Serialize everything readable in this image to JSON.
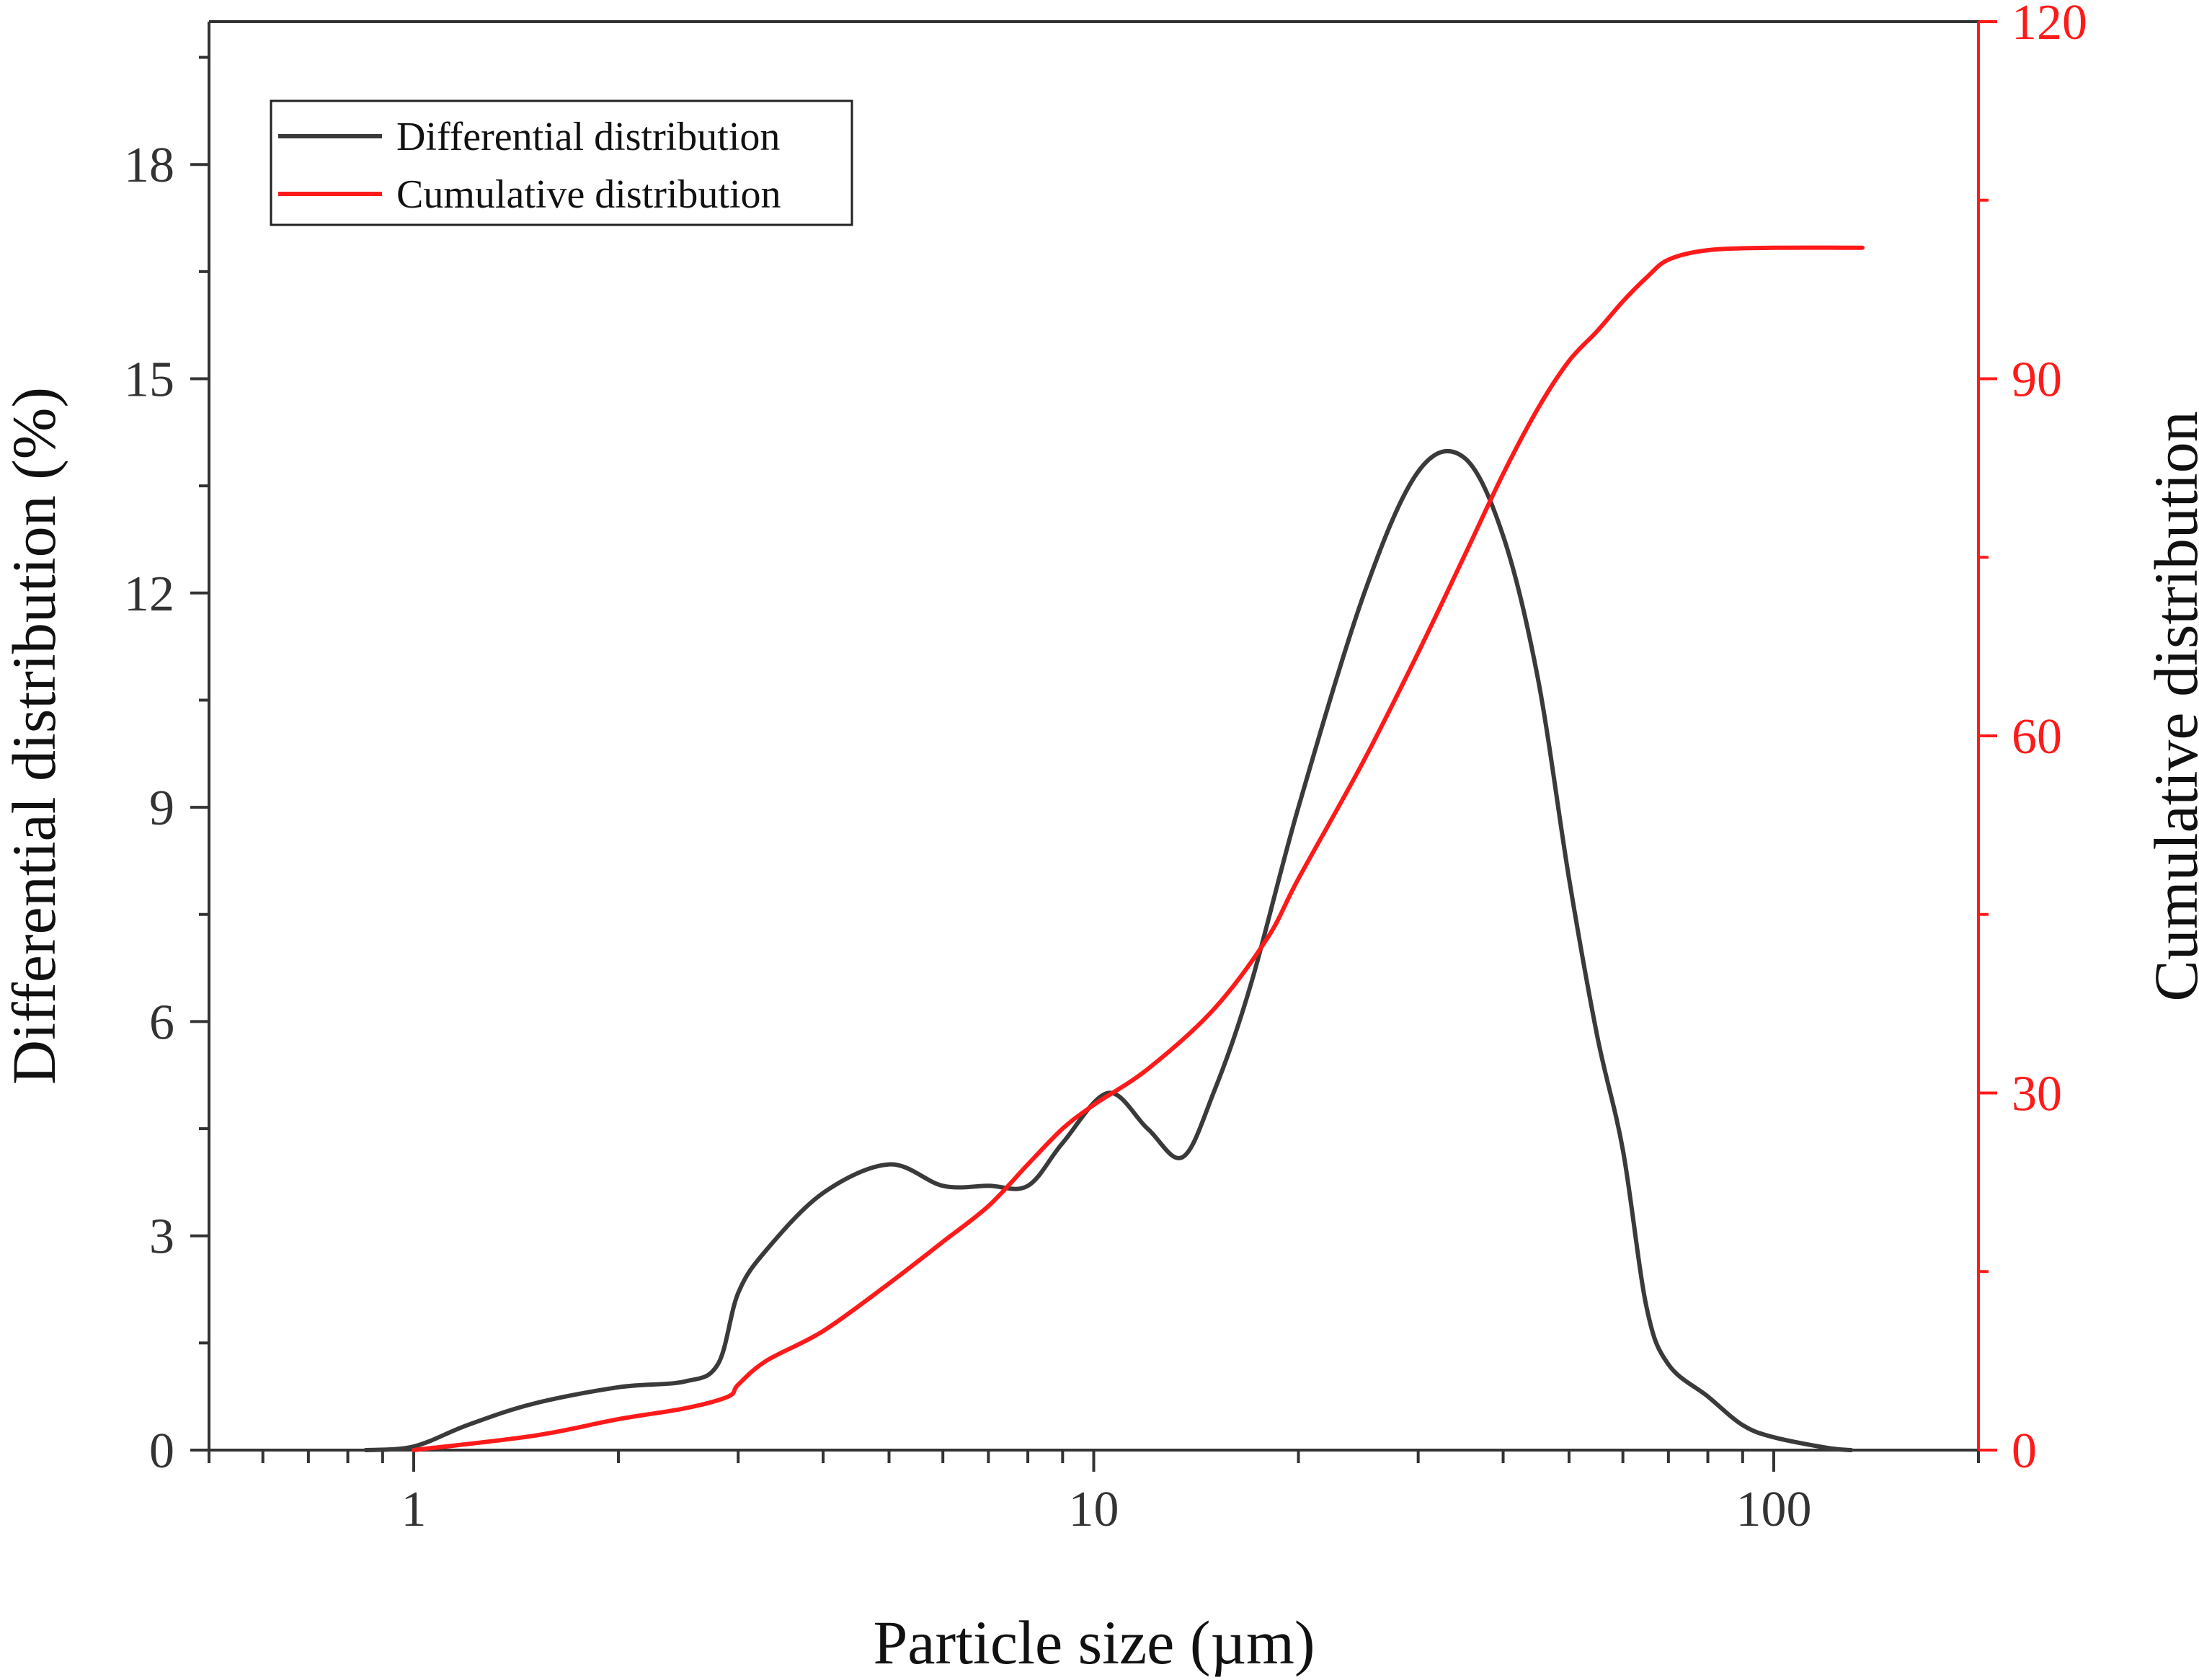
{
  "chart_data": {
    "type": "line",
    "title": "",
    "xlabel": "Particle size (µm)",
    "ylabel": "Differential distribution (%)",
    "ylabel_right": "Cumulative distribution",
    "x_scale": "log",
    "xlim": [
      0.5,
      200
    ],
    "ylim": [
      0,
      20
    ],
    "ylim_right": [
      0,
      120
    ],
    "x_ticks": [
      1,
      10,
      100
    ],
    "x_tick_labels": [
      "1",
      "10",
      "100"
    ],
    "y_ticks": [
      0,
      3,
      6,
      9,
      12,
      15,
      18
    ],
    "y_tick_labels": [
      "0",
      "3",
      "6",
      "9",
      "12",
      "15",
      "18"
    ],
    "y_right_ticks": [
      0,
      30,
      60,
      90,
      120
    ],
    "y_right_tick_labels": [
      "0",
      "30",
      "60",
      "90",
      "120"
    ],
    "grid": false,
    "legend_position": "top-left",
    "colors": {
      "differential": "#3a3a3a",
      "cumulative": "#ff1a1a",
      "axis_left": "#333333",
      "axis_right": "#ff1a1a"
    },
    "series": [
      {
        "name": "Differential distribution",
        "axis": "left",
        "x": [
          0.85,
          1.0,
          1.2,
          1.5,
          2.0,
          2.5,
          2.8,
          3.0,
          3.3,
          4.0,
          5.0,
          6.0,
          7.0,
          8.0,
          9.0,
          10.5,
          12.0,
          13.5,
          15.0,
          17.0,
          20.0,
          25.0,
          30.0,
          35.0,
          40.0,
          45.0,
          50.0,
          55.0,
          60.0,
          65.0,
          70.0,
          80.0,
          90.0,
          100.0,
          120.0,
          130.0
        ],
        "values": [
          0,
          0.05,
          0.35,
          0.65,
          0.88,
          0.96,
          1.2,
          2.2,
          2.8,
          3.6,
          4.0,
          3.7,
          3.7,
          3.7,
          4.3,
          5.0,
          4.5,
          4.1,
          5.0,
          6.5,
          9.0,
          12.0,
          13.7,
          13.9,
          12.8,
          10.8,
          8.0,
          5.8,
          4.2,
          2.0,
          1.2,
          0.75,
          0.35,
          0.18,
          0.03,
          0
        ]
      },
      {
        "name": "Cumulative distribution",
        "axis": "right",
        "x": [
          1.0,
          1.5,
          2.0,
          2.5,
          2.9,
          3.0,
          3.3,
          4.0,
          5.0,
          6.0,
          7.0,
          8.0,
          9.0,
          10.0,
          12.0,
          15.0,
          18.0,
          20.0,
          25.0,
          30.0,
          35.0,
          40.0,
          45.0,
          50.0,
          55.0,
          60.0,
          65.0,
          70.0,
          80.0,
          100.0,
          135.0
        ],
        "values": [
          0,
          1.2,
          2.6,
          3.5,
          4.5,
          5.5,
          7.5,
          10.0,
          14.0,
          17.5,
          20.5,
          24.0,
          27.0,
          29.0,
          32.0,
          37.0,
          43.0,
          48.0,
          58.0,
          67.0,
          75.0,
          82.0,
          87.5,
          91.5,
          94.0,
          96.5,
          98.5,
          100.0,
          100.8,
          101.0,
          101.0
        ]
      }
    ]
  }
}
